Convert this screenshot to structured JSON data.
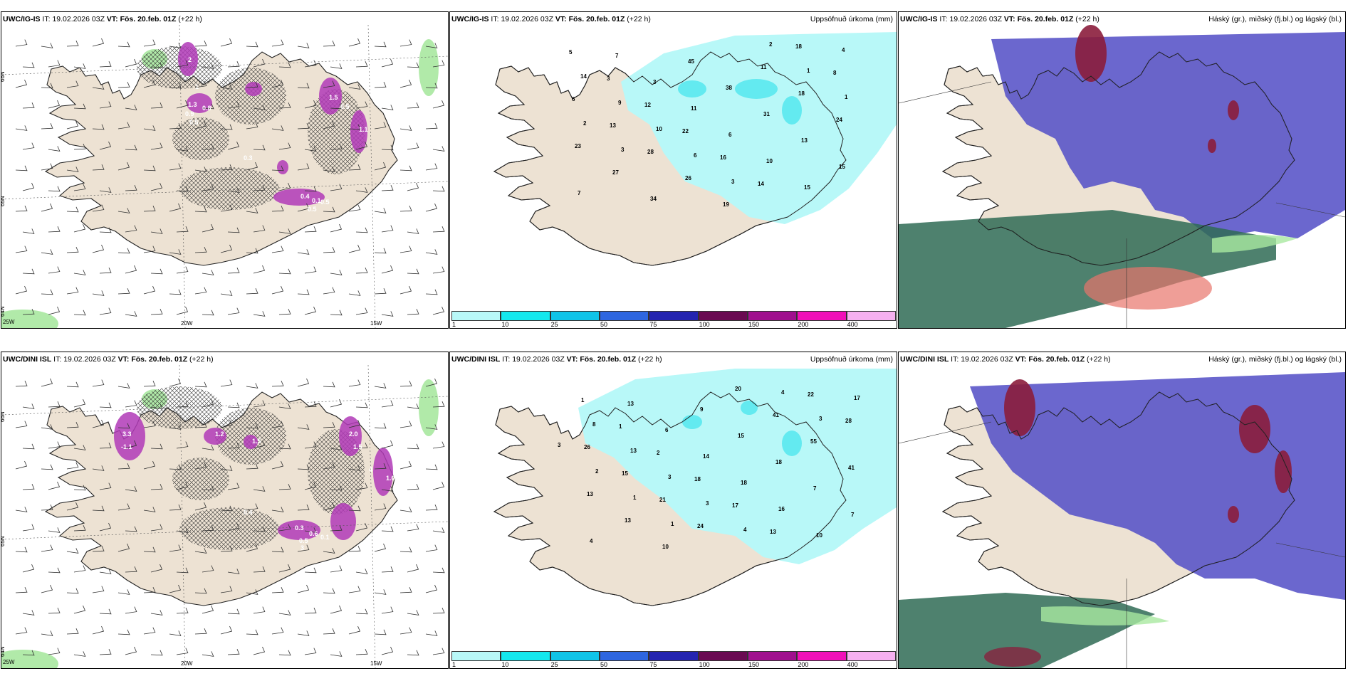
{
  "colors": {
    "land": "#ede2d3",
    "precip_light": "#b8f8f8",
    "precip_mid": "#5ae8ee",
    "convective": "#b03ab7",
    "cloud_high": "#8b1d3c",
    "cloud_mid": "#5752c7",
    "cloud_low": "#2f6b55",
    "frost_green": "#a9e8a0",
    "warm_red": "#e8756b"
  },
  "panels": [
    {
      "id": "p1",
      "type": "wind",
      "header": {
        "model": "UWC/IG-IS",
        "it_label": "IT:",
        "it": "19.02.2026 03Z",
        "vt_label": "VT:",
        "vt": "Fös. 20.feb. 01Z",
        "lead": "(+22 h)",
        "right": ""
      },
      "lat_labels": [
        "66N",
        "65N",
        "64N"
      ],
      "lon_labels": [
        "25W",
        "20W",
        "15W"
      ],
      "values": [
        "2",
        "1",
        "1.3",
        "0.9",
        "0.8",
        "0.5",
        "1.5",
        "0.5",
        "1.1",
        "0.4",
        "0.1",
        "0.5",
        "0.5",
        "0.3"
      ]
    },
    {
      "id": "p2",
      "type": "precip",
      "header": {
        "model": "UWC/IG-IS",
        "it_label": "IT:",
        "it": "19.02.2026 03Z",
        "vt_label": "VT:",
        "vt": "Fös. 20.feb. 01Z",
        "lead": "(+22 h)",
        "right": "Uppsöfnuð úrkoma (mm)"
      },
      "values": [
        "5",
        "3",
        "12",
        "22",
        "16",
        "14",
        "18",
        "8",
        "6",
        "13",
        "28",
        "26",
        "19",
        "11",
        "18",
        "24",
        "23",
        "27",
        "34",
        "45",
        "38",
        "31",
        "13",
        "15",
        "7",
        "7",
        "3",
        "11",
        "6",
        "10",
        "15",
        "4",
        "14",
        "9",
        "10",
        "6",
        "3",
        "2",
        "1",
        "1",
        "2",
        "3"
      ]
    },
    {
      "id": "p3",
      "type": "cloud",
      "header": {
        "model": "UWC/IG-IS",
        "it_label": "IT:",
        "it": "19.02.2026 03Z",
        "vt_label": "VT:",
        "vt": "Fös. 20.feb. 01Z",
        "lead": "(+22 h)",
        "right": "Háský (gr.), miðský (fj.bl.) og lágský (bl.)"
      }
    },
    {
      "id": "p4",
      "type": "wind",
      "header": {
        "model": "UWC/DINI ISL",
        "it_label": "IT:",
        "it": "19.02.2026 03Z",
        "vt_label": "VT:",
        "vt": "Fös. 20.feb. 01Z",
        "lead": "(+22 h)",
        "right": ""
      },
      "lat_labels": [
        "66N",
        "65N",
        "64N"
      ],
      "lon_labels": [
        "25W",
        "20W",
        "15W"
      ],
      "values": [
        "3.3",
        "-1.1",
        "1.2",
        "1.5",
        "2.0",
        "1.5",
        "4",
        "0.3",
        "0.5",
        "0.6",
        "0.1",
        "3",
        "1.0",
        "0.4"
      ]
    },
    {
      "id": "p5",
      "type": "precip",
      "header": {
        "model": "UWC/DINI ISL",
        "it_label": "IT:",
        "it": "19.02.2026 03Z",
        "vt_label": "VT:",
        "vt": "Fös. 20.feb. 01Z",
        "lead": "(+22 h)",
        "right": "Uppsöfnuð úrkoma (mm)"
      },
      "values": [
        "1",
        "1",
        "2",
        "18",
        "17",
        "13",
        "22",
        "28",
        "26",
        "15",
        "21",
        "24",
        "20",
        "41",
        "55",
        "41",
        "13",
        "13",
        "10",
        "9",
        "15",
        "18",
        "7",
        "7",
        "4",
        "13",
        "6",
        "14",
        "18",
        "16",
        "10",
        "17",
        "8",
        "13",
        "3",
        "3",
        "4",
        "4",
        "3",
        "3",
        "2",
        "1",
        "1"
      ]
    },
    {
      "id": "p6",
      "type": "cloud",
      "header": {
        "model": "UWC/DINI ISL",
        "it_label": "IT:",
        "it": "19.02.2026 03Z",
        "vt_label": "VT:",
        "vt": "Fös. 20.feb. 01Z",
        "lead": "(+22 h)",
        "right": "Háský (gr.), miðský (fj.bl.) og lágský (bl.)"
      }
    }
  ],
  "colorbar": {
    "labels": [
      "1",
      "10",
      "25",
      "50",
      "75",
      "100",
      "150",
      "200",
      "400"
    ],
    "colors": [
      "#b8f8f8",
      "#14e8ee",
      "#10c4e8",
      "#2e66e0",
      "#2424b0",
      "#6a0a52",
      "#a0108e",
      "#f010b8",
      "#f6b0f0"
    ]
  }
}
